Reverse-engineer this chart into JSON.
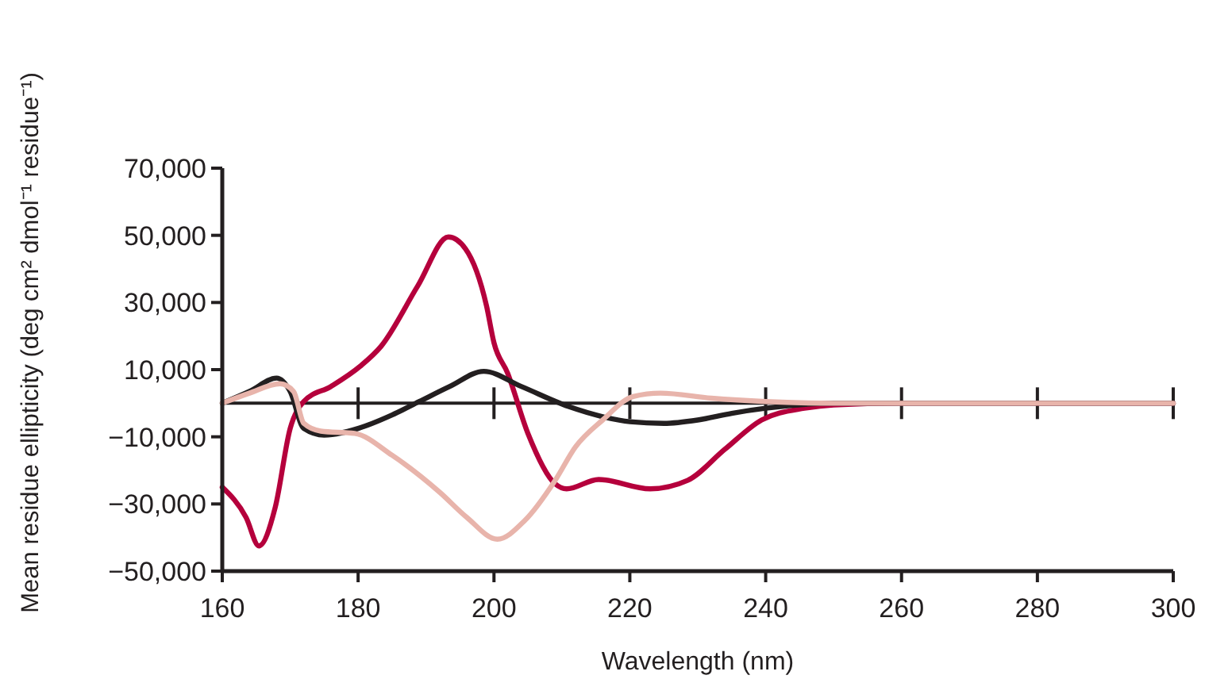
{
  "chart_data": {
    "type": "line",
    "xlabel": "Wavelength (nm)",
    "ylabel": "Mean residue ellipticity (deg cm² dmol⁻¹ residue⁻¹)",
    "xlim": [
      160,
      300
    ],
    "xticks": [
      160,
      180,
      200,
      220,
      240,
      260,
      280,
      300
    ],
    "ylim": [
      -50000,
      70000
    ],
    "yticks": [
      {
        "value": -50000,
        "label": "−50,000"
      },
      {
        "value": -30000,
        "label": "−30,000"
      },
      {
        "value": -10000,
        "label": "−10,000"
      },
      {
        "value": 10000,
        "label": "10,000"
      },
      {
        "value": 30000,
        "label": "30,000"
      },
      {
        "value": 50000,
        "label": "50,000"
      },
      {
        "value": 70000,
        "label": "70,000"
      }
    ],
    "grid": false,
    "ref_lines": [
      {
        "axis": "y",
        "value": 0,
        "color": "#231f20"
      }
    ],
    "series": [
      {
        "color": "#b5003c",
        "x": [
          160,
          163.5,
          165.4,
          167.8,
          170,
          172,
          176,
          180.3,
          183.4,
          188.8,
          193.3,
          195.8,
          198.9,
          200,
          202,
          205,
          209,
          210.7,
          215.4,
          223,
          228.5,
          234,
          239.4,
          245.7,
          250,
          260,
          280,
          300
        ],
        "values": [
          -25000,
          -34000,
          -42500,
          -31000,
          -7500,
          500,
          5000,
          11000,
          17000,
          35000,
          49500,
          46000,
          29000,
          18000,
          9000,
          -9000,
          -24000,
          -25500,
          -22700,
          -25500,
          -23000,
          -13700,
          -5000,
          -1500,
          -500,
          0,
          0,
          0
        ]
      },
      {
        "color": "#231f20",
        "x": [
          160,
          164,
          168,
          170,
          172,
          175,
          180,
          185,
          189,
          193.5,
          198.5,
          204,
          211,
          216,
          220,
          225,
          230,
          235,
          240,
          250,
          260,
          280,
          300
        ],
        "values": [
          0,
          3500,
          7500,
          3500,
          -7500,
          -9500,
          -7500,
          -3500,
          500,
          5000,
          9500,
          5000,
          -1000,
          -4000,
          -5500,
          -6000,
          -5000,
          -3000,
          -1500,
          0,
          0,
          0,
          0
        ]
      },
      {
        "color": "#e8b4ab",
        "x": [
          160,
          164,
          168.5,
          170.5,
          172,
          174.5,
          179.5,
          185,
          192,
          196,
          200.5,
          204.5,
          209,
          212,
          216,
          220.5,
          224.5,
          232,
          240,
          250,
          260,
          280,
          300
        ],
        "values": [
          0,
          3000,
          5800,
          3500,
          -6000,
          -8300,
          -9000,
          -15500,
          -26500,
          -34000,
          -40500,
          -35000,
          -23000,
          -13000,
          -5000,
          2000,
          3000,
          1500,
          500,
          0,
          0,
          0,
          0
        ]
      }
    ]
  }
}
